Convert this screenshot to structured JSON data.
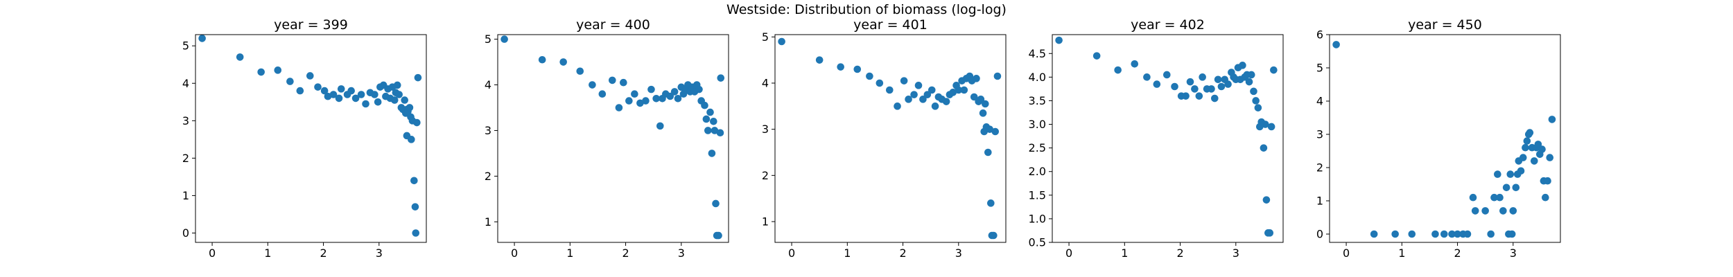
{
  "chart_data": {
    "type": "scatter",
    "title": "Westside: Distribution of biomass (log-log)",
    "marker_color": "#1f77b4",
    "panels": [
      {
        "title": "year = 399",
        "xlim": [
          -0.3,
          3.85
        ],
        "ylim": [
          -0.25,
          5.3
        ],
        "xticks": [
          0,
          1,
          2,
          3
        ],
        "yticks": [
          0,
          1,
          2,
          3,
          4,
          5
        ],
        "points": [
          [
            -0.18,
            5.2
          ],
          [
            0.5,
            4.7
          ],
          [
            0.88,
            4.3
          ],
          [
            1.18,
            4.35
          ],
          [
            1.4,
            4.05
          ],
          [
            1.58,
            3.8
          ],
          [
            1.76,
            4.2
          ],
          [
            1.9,
            3.9
          ],
          [
            2.02,
            3.8
          ],
          [
            2.08,
            3.65
          ],
          [
            2.18,
            3.7
          ],
          [
            2.28,
            3.6
          ],
          [
            2.32,
            3.85
          ],
          [
            2.43,
            3.7
          ],
          [
            2.5,
            3.8
          ],
          [
            2.58,
            3.6
          ],
          [
            2.68,
            3.7
          ],
          [
            2.76,
            3.45
          ],
          [
            2.84,
            3.75
          ],
          [
            2.92,
            3.7
          ],
          [
            2.98,
            3.5
          ],
          [
            3.02,
            3.9
          ],
          [
            3.08,
            3.95
          ],
          [
            3.12,
            3.65
          ],
          [
            3.16,
            3.85
          ],
          [
            3.2,
            3.6
          ],
          [
            3.24,
            3.9
          ],
          [
            3.28,
            3.55
          ],
          [
            3.3,
            3.75
          ],
          [
            3.33,
            3.95
          ],
          [
            3.36,
            3.7
          ],
          [
            3.4,
            3.35
          ],
          [
            3.43,
            3.3
          ],
          [
            3.46,
            3.55
          ],
          [
            3.48,
            3.2
          ],
          [
            3.5,
            3.3
          ],
          [
            3.52,
            3.25
          ],
          [
            3.5,
            2.6
          ],
          [
            3.55,
            3.35
          ],
          [
            3.57,
            3.1
          ],
          [
            3.58,
            2.5
          ],
          [
            3.6,
            3.0
          ],
          [
            3.63,
            1.4
          ],
          [
            3.65,
            0.7
          ],
          [
            3.66,
            0.0
          ],
          [
            3.68,
            2.95
          ],
          [
            3.7,
            4.15
          ]
        ]
      },
      {
        "title": "year = 400",
        "xlim": [
          -0.3,
          3.85
        ],
        "ylim": [
          0.55,
          5.1
        ],
        "xticks": [
          0,
          1,
          2,
          3
        ],
        "yticks": [
          1,
          2,
          3,
          4,
          5
        ],
        "points": [
          [
            -0.18,
            5.0
          ],
          [
            0.5,
            4.55
          ],
          [
            0.88,
            4.5
          ],
          [
            1.18,
            4.3
          ],
          [
            1.4,
            4.0
          ],
          [
            1.58,
            3.8
          ],
          [
            1.76,
            4.1
          ],
          [
            1.88,
            3.5
          ],
          [
            1.96,
            4.05
          ],
          [
            2.06,
            3.65
          ],
          [
            2.16,
            3.8
          ],
          [
            2.26,
            3.6
          ],
          [
            2.36,
            3.65
          ],
          [
            2.46,
            3.9
          ],
          [
            2.55,
            3.7
          ],
          [
            2.62,
            3.1
          ],
          [
            2.66,
            3.7
          ],
          [
            2.72,
            3.8
          ],
          [
            2.8,
            3.75
          ],
          [
            2.88,
            3.85
          ],
          [
            2.94,
            3.7
          ],
          [
            3.0,
            3.95
          ],
          [
            3.04,
            3.8
          ],
          [
            3.08,
            3.9
          ],
          [
            3.12,
            4.0
          ],
          [
            3.16,
            3.85
          ],
          [
            3.2,
            3.95
          ],
          [
            3.24,
            3.85
          ],
          [
            3.28,
            4.0
          ],
          [
            3.32,
            3.9
          ],
          [
            3.36,
            3.65
          ],
          [
            3.42,
            3.55
          ],
          [
            3.45,
            3.25
          ],
          [
            3.48,
            3.0
          ],
          [
            3.52,
            3.4
          ],
          [
            3.55,
            2.5
          ],
          [
            3.58,
            3.2
          ],
          [
            3.6,
            3.0
          ],
          [
            3.62,
            1.4
          ],
          [
            3.64,
            0.7
          ],
          [
            3.67,
            0.7
          ],
          [
            3.7,
            2.95
          ],
          [
            3.71,
            4.15
          ]
        ]
      },
      {
        "title": "year = 401",
        "xlim": [
          -0.3,
          3.85
        ],
        "ylim": [
          0.55,
          5.05
        ],
        "xticks": [
          0,
          1,
          2,
          3
        ],
        "yticks": [
          1,
          2,
          3,
          4,
          5
        ],
        "points": [
          [
            -0.18,
            4.9
          ],
          [
            0.5,
            4.5
          ],
          [
            0.88,
            4.35
          ],
          [
            1.18,
            4.3
          ],
          [
            1.4,
            4.15
          ],
          [
            1.58,
            4.0
          ],
          [
            1.76,
            3.85
          ],
          [
            1.9,
            3.5
          ],
          [
            2.02,
            4.05
          ],
          [
            2.1,
            3.65
          ],
          [
            2.2,
            3.75
          ],
          [
            2.28,
            3.95
          ],
          [
            2.36,
            3.65
          ],
          [
            2.44,
            3.75
          ],
          [
            2.52,
            3.85
          ],
          [
            2.58,
            3.5
          ],
          [
            2.64,
            3.7
          ],
          [
            2.7,
            3.65
          ],
          [
            2.78,
            3.6
          ],
          [
            2.84,
            3.75
          ],
          [
            2.9,
            3.8
          ],
          [
            2.96,
            3.95
          ],
          [
            3.0,
            3.85
          ],
          [
            3.06,
            4.05
          ],
          [
            3.1,
            3.85
          ],
          [
            3.14,
            4.1
          ],
          [
            3.2,
            4.15
          ],
          [
            3.24,
            4.05
          ],
          [
            3.28,
            3.7
          ],
          [
            3.32,
            4.1
          ],
          [
            3.36,
            3.6
          ],
          [
            3.4,
            3.65
          ],
          [
            3.44,
            3.35
          ],
          [
            3.46,
            2.95
          ],
          [
            3.48,
            3.55
          ],
          [
            3.5,
            3.05
          ],
          [
            3.53,
            2.5
          ],
          [
            3.56,
            3.0
          ],
          [
            3.58,
            1.4
          ],
          [
            3.6,
            0.7
          ],
          [
            3.63,
            0.7
          ],
          [
            3.66,
            2.95
          ],
          [
            3.7,
            4.15
          ]
        ]
      },
      {
        "title": "year = 402",
        "xlim": [
          -0.3,
          3.85
        ],
        "ylim": [
          0.5,
          4.9
        ],
        "xticks": [
          0,
          1,
          2,
          3
        ],
        "yticks": [
          0.5,
          1.0,
          1.5,
          2.0,
          2.5,
          3.0,
          3.5,
          4.0,
          4.5
        ],
        "points": [
          [
            -0.18,
            4.78
          ],
          [
            0.5,
            4.45
          ],
          [
            0.88,
            4.15
          ],
          [
            1.18,
            4.28
          ],
          [
            1.4,
            4.0
          ],
          [
            1.58,
            3.85
          ],
          [
            1.76,
            4.05
          ],
          [
            1.9,
            3.8
          ],
          [
            2.02,
            3.6
          ],
          [
            2.1,
            3.6
          ],
          [
            2.18,
            3.9
          ],
          [
            2.26,
            3.75
          ],
          [
            2.34,
            3.6
          ],
          [
            2.4,
            4.0
          ],
          [
            2.48,
            3.75
          ],
          [
            2.56,
            3.75
          ],
          [
            2.62,
            3.55
          ],
          [
            2.68,
            3.95
          ],
          [
            2.74,
            3.8
          ],
          [
            2.8,
            3.95
          ],
          [
            2.86,
            3.85
          ],
          [
            2.92,
            4.1
          ],
          [
            2.96,
            4.0
          ],
          [
            3.0,
            3.95
          ],
          [
            3.04,
            4.2
          ],
          [
            3.08,
            3.95
          ],
          [
            3.12,
            4.25
          ],
          [
            3.16,
            4.0
          ],
          [
            3.2,
            4.05
          ],
          [
            3.24,
            3.9
          ],
          [
            3.28,
            4.05
          ],
          [
            3.32,
            3.7
          ],
          [
            3.36,
            3.5
          ],
          [
            3.4,
            3.35
          ],
          [
            3.43,
            2.95
          ],
          [
            3.46,
            3.05
          ],
          [
            3.5,
            2.5
          ],
          [
            3.53,
            3.0
          ],
          [
            3.55,
            1.4
          ],
          [
            3.58,
            0.7
          ],
          [
            3.61,
            0.7
          ],
          [
            3.64,
            2.95
          ],
          [
            3.68,
            4.15
          ]
        ]
      },
      {
        "title": "year = 450",
        "xlim": [
          -0.3,
          3.85
        ],
        "ylim": [
          -0.25,
          6.0
        ],
        "xticks": [
          0,
          1,
          2,
          3
        ],
        "yticks": [
          0,
          1,
          2,
          3,
          4,
          5,
          6
        ],
        "points": [
          [
            -0.18,
            5.7
          ],
          [
            0.5,
            0.0
          ],
          [
            0.88,
            0.0
          ],
          [
            1.18,
            0.0
          ],
          [
            1.6,
            0.0
          ],
          [
            1.76,
            0.0
          ],
          [
            1.9,
            0.0
          ],
          [
            2.0,
            0.0
          ],
          [
            2.1,
            0.0
          ],
          [
            2.18,
            0.0
          ],
          [
            2.28,
            1.1
          ],
          [
            2.32,
            0.7
          ],
          [
            2.5,
            0.7
          ],
          [
            2.6,
            0.0
          ],
          [
            2.66,
            1.1
          ],
          [
            2.72,
            1.8
          ],
          [
            2.76,
            1.1
          ],
          [
            2.82,
            0.7
          ],
          [
            2.88,
            1.4
          ],
          [
            2.92,
            0.0
          ],
          [
            2.95,
            1.8
          ],
          [
            2.98,
            0.0
          ],
          [
            3.0,
            0.7
          ],
          [
            3.05,
            1.4
          ],
          [
            3.08,
            1.8
          ],
          [
            3.1,
            2.2
          ],
          [
            3.14,
            1.9
          ],
          [
            3.18,
            2.3
          ],
          [
            3.22,
            2.6
          ],
          [
            3.25,
            2.8
          ],
          [
            3.28,
            3.0
          ],
          [
            3.3,
            3.05
          ],
          [
            3.34,
            2.6
          ],
          [
            3.38,
            2.2
          ],
          [
            3.42,
            2.6
          ],
          [
            3.45,
            2.7
          ],
          [
            3.48,
            2.4
          ],
          [
            3.52,
            2.55
          ],
          [
            3.55,
            1.6
          ],
          [
            3.58,
            1.1
          ],
          [
            3.62,
            1.6
          ],
          [
            3.66,
            2.3
          ],
          [
            3.7,
            3.45
          ]
        ]
      }
    ]
  }
}
